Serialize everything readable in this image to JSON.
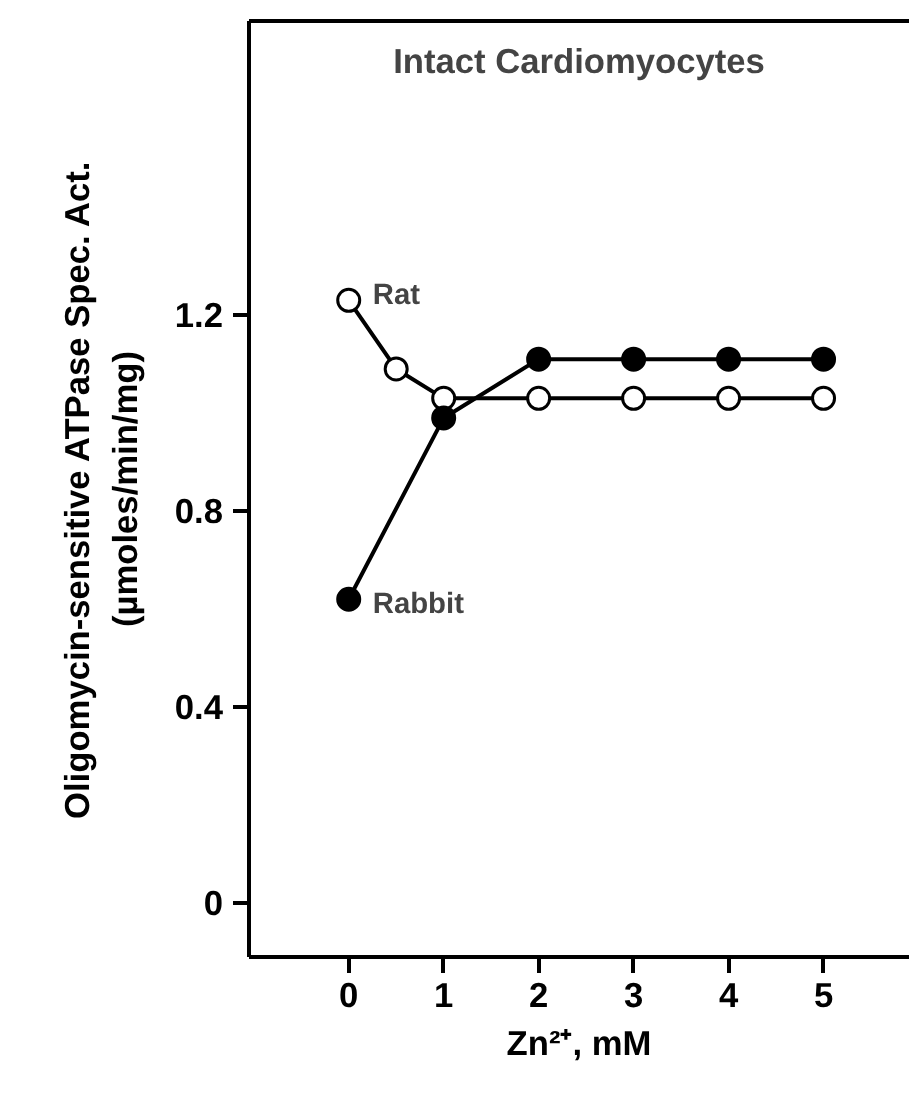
{
  "chart_data": {
    "type": "line",
    "title": "Intact Cardiomyocytes",
    "xlabel": "Zn²⁺, mM",
    "ylabel": "Oligomycin-sensitive ATPase Spec. Act.\n(µmoles/min/mg)",
    "marker": "circle",
    "line_style": "solid",
    "grid": false,
    "xlim": [
      -1.05,
      5.9
    ],
    "xticks": [
      0,
      1,
      2,
      3,
      4,
      5
    ],
    "ylim": [
      -0.11,
      1.8
    ],
    "yticks": [
      0,
      0.4,
      0.8,
      1.2
    ],
    "series": [
      {
        "name": "Rat",
        "color": "#ffffff",
        "x": [
          0,
          0.5,
          1,
          2,
          3,
          4,
          5
        ],
        "values": [
          1.23,
          1.09,
          1.03,
          1.03,
          1.03,
          1.03,
          1.03
        ]
      },
      {
        "name": "Rabbit",
        "color": "#000000",
        "x": [
          0,
          1,
          2,
          3,
          4,
          5
        ],
        "values": [
          0.62,
          0.99,
          1.11,
          1.11,
          1.11,
          1.11
        ]
      }
    ]
  }
}
